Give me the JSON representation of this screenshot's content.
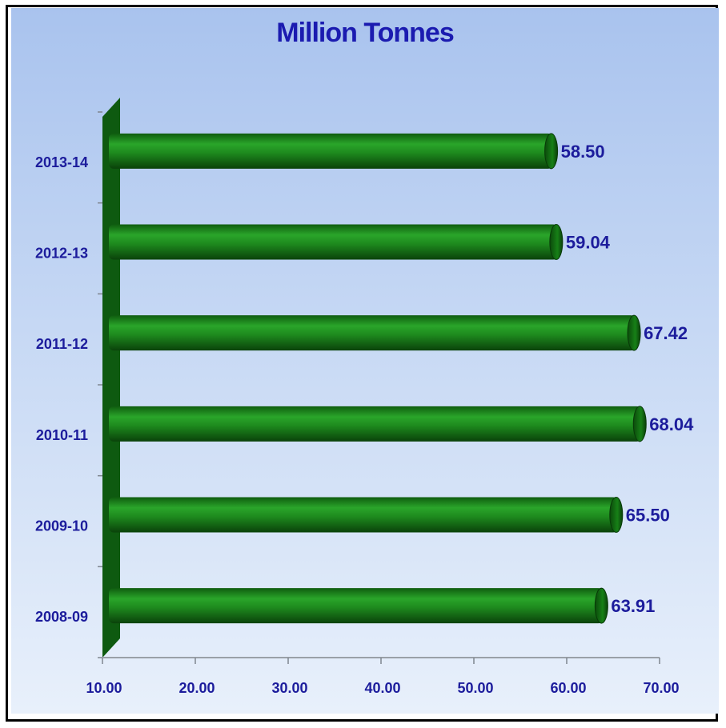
{
  "chart_data": {
    "type": "bar",
    "orientation": "horizontal",
    "title": "Million Tonnes",
    "categories": [
      "2008-09",
      "2009-10",
      "2010-11",
      "2011-12",
      "2012-13",
      "2013-14"
    ],
    "values": [
      63.91,
      65.5,
      68.04,
      67.42,
      59.04,
      58.5
    ],
    "value_labels": [
      "63.91",
      "65.50",
      "68.04",
      "67.42",
      "59.04",
      "58.50"
    ],
    "xlim": [
      10,
      70
    ],
    "x_ticks": [
      "10.00",
      "20.00",
      "30.00",
      "40.00",
      "50.00",
      "60.00",
      "70.00"
    ],
    "xlabel": "",
    "ylabel": "",
    "grid": false,
    "legend": "none",
    "colors": {
      "bar": "#1e8a1e",
      "bar_dark": "#0c4d0c",
      "wall": "#0e5a10",
      "text": "#1c1c9c",
      "background_top": "#a9c3ee",
      "background_bottom": "#e8f0fb"
    }
  }
}
